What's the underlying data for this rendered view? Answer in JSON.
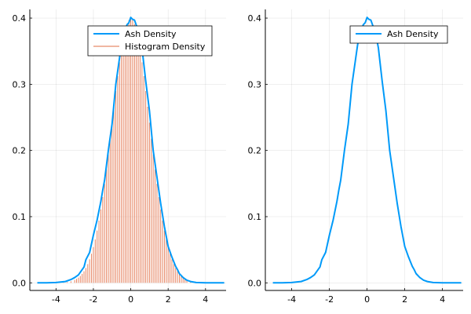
{
  "chart_data": [
    {
      "type": "line",
      "title": "",
      "xlabel": "",
      "ylabel": "",
      "xlim": [
        -5.4,
        5.1
      ],
      "ylim": [
        -0.0115,
        0.4131
      ],
      "xticks": [
        -4,
        -2,
        0,
        2,
        4
      ],
      "yticks": [
        0.0,
        0.1,
        0.2,
        0.3,
        0.4
      ],
      "grid": true,
      "legend_position": "top-right",
      "colors": {
        "ash": "#009af9",
        "hist": "#e26f46"
      },
      "series": [
        {
          "name": "Ash Density",
          "style": "line",
          "x": [
            -5.0,
            -4.5,
            -4.0,
            -3.5,
            -3.2,
            -3.0,
            -2.8,
            -2.6,
            -2.5,
            -2.4,
            -2.2,
            -2.0,
            -1.8,
            -1.6,
            -1.5,
            -1.4,
            -1.2,
            -1.0,
            -0.8,
            -0.6,
            -0.5,
            -0.4,
            -0.3,
            -0.2,
            -0.1,
            0.0,
            0.1,
            0.2,
            0.3,
            0.4,
            0.5,
            0.6,
            0.8,
            1.0,
            1.2,
            1.4,
            1.5,
            1.6,
            1.8,
            2.0,
            2.2,
            2.4,
            2.5,
            2.6,
            2.8,
            3.0,
            3.2,
            3.5,
            4.0,
            4.5,
            5.0
          ],
          "y": [
            0.0,
            0.0,
            0.0005,
            0.002,
            0.005,
            0.008,
            0.012,
            0.02,
            0.024,
            0.035,
            0.046,
            0.072,
            0.095,
            0.123,
            0.14,
            0.155,
            0.2,
            0.24,
            0.3,
            0.34,
            0.36,
            0.375,
            0.382,
            0.39,
            0.393,
            0.401,
            0.398,
            0.397,
            0.389,
            0.38,
            0.37,
            0.355,
            0.305,
            0.26,
            0.2,
            0.16,
            0.14,
            0.12,
            0.085,
            0.055,
            0.039,
            0.025,
            0.02,
            0.014,
            0.008,
            0.004,
            0.002,
            0.0005,
            0.0,
            0.0,
            0.0
          ]
        },
        {
          "name": "Histogram Density",
          "style": "sticks",
          "x": [
            -3.8,
            -3.6,
            -3.4,
            -3.2,
            -3.0,
            -2.9,
            -2.8,
            -2.7,
            -2.6,
            -2.5,
            -2.4,
            -2.3,
            -2.2,
            -2.1,
            -2.0,
            -1.9,
            -1.8,
            -1.7,
            -1.6,
            -1.5,
            -1.4,
            -1.3,
            -1.2,
            -1.1,
            -1.0,
            -0.9,
            -0.8,
            -0.7,
            -0.6,
            -0.5,
            -0.4,
            -0.3,
            -0.2,
            -0.1,
            0.0,
            0.1,
            0.2,
            0.3,
            0.4,
            0.5,
            0.6,
            0.7,
            0.8,
            0.9,
            1.0,
            1.1,
            1.2,
            1.3,
            1.4,
            1.5,
            1.6,
            1.7,
            1.8,
            1.9,
            2.0,
            2.1,
            2.2,
            2.3,
            2.4,
            2.5,
            2.6,
            2.7,
            2.8,
            2.9,
            3.0,
            3.2,
            3.4,
            3.6,
            3.8
          ],
          "y": [
            0.0003,
            0.0006,
            0.0012,
            0.0023,
            0.0044,
            0.006,
            0.0079,
            0.0104,
            0.0136,
            0.0175,
            0.0224,
            0.0283,
            0.0355,
            0.044,
            0.054,
            0.0656,
            0.079,
            0.094,
            0.1109,
            0.1295,
            0.1497,
            0.1714,
            0.1942,
            0.2179,
            0.242,
            0.2661,
            0.2897,
            0.3123,
            0.3332,
            0.3521,
            0.3683,
            0.3814,
            0.391,
            0.397,
            0.3989,
            0.397,
            0.391,
            0.3814,
            0.3683,
            0.3521,
            0.3332,
            0.3123,
            0.2897,
            0.2661,
            0.242,
            0.2179,
            0.1942,
            0.1714,
            0.1497,
            0.1295,
            0.1109,
            0.094,
            0.079,
            0.0656,
            0.054,
            0.044,
            0.0355,
            0.0283,
            0.0224,
            0.0175,
            0.0136,
            0.0104,
            0.0079,
            0.006,
            0.0044,
            0.0023,
            0.0012,
            0.0006,
            0.0003
          ]
        }
      ]
    },
    {
      "type": "line",
      "title": "",
      "xlabel": "",
      "ylabel": "",
      "xlim": [
        -5.4,
        5.1
      ],
      "ylim": [
        -0.0115,
        0.4131
      ],
      "xticks": [
        -4,
        -2,
        0,
        2,
        4
      ],
      "yticks": [
        0.0,
        0.1,
        0.2,
        0.3,
        0.4
      ],
      "grid": true,
      "legend_position": "top-right",
      "colors": {
        "ash": "#009af9"
      },
      "series": [
        {
          "name": "Ash Density",
          "style": "line",
          "x": [
            -5.0,
            -4.5,
            -4.0,
            -3.5,
            -3.2,
            -3.0,
            -2.8,
            -2.6,
            -2.5,
            -2.4,
            -2.2,
            -2.0,
            -1.8,
            -1.6,
            -1.5,
            -1.4,
            -1.2,
            -1.0,
            -0.8,
            -0.6,
            -0.5,
            -0.4,
            -0.3,
            -0.2,
            -0.1,
            0.0,
            0.1,
            0.2,
            0.3,
            0.4,
            0.5,
            0.6,
            0.8,
            1.0,
            1.2,
            1.4,
            1.5,
            1.6,
            1.8,
            2.0,
            2.2,
            2.4,
            2.5,
            2.6,
            2.8,
            3.0,
            3.2,
            3.5,
            4.0,
            4.5,
            5.0
          ],
          "y": [
            0.0,
            0.0,
            0.0005,
            0.002,
            0.005,
            0.008,
            0.012,
            0.02,
            0.024,
            0.035,
            0.046,
            0.072,
            0.095,
            0.123,
            0.14,
            0.155,
            0.2,
            0.24,
            0.3,
            0.34,
            0.36,
            0.375,
            0.382,
            0.39,
            0.393,
            0.401,
            0.398,
            0.397,
            0.389,
            0.38,
            0.37,
            0.355,
            0.305,
            0.26,
            0.2,
            0.16,
            0.14,
            0.12,
            0.085,
            0.055,
            0.039,
            0.025,
            0.02,
            0.014,
            0.008,
            0.004,
            0.002,
            0.0005,
            0.0,
            0.0,
            0.0
          ]
        }
      ]
    }
  ]
}
